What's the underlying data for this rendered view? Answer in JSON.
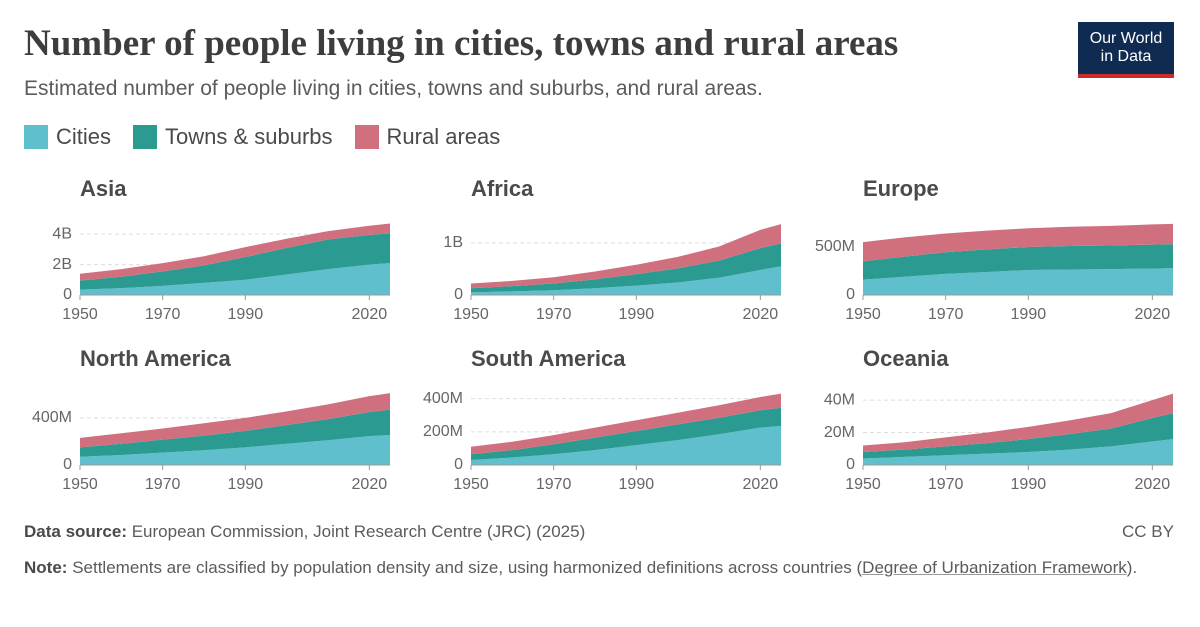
{
  "title": "Number of people living in cities, towns and rural areas",
  "subtitle": "Estimated number of people living in cities, towns and suburbs, and rural areas.",
  "logo": [
    "Our World",
    "in Data"
  ],
  "source_label": "Data source:",
  "source": "European Commission, Joint Research Centre (JRC) (2025)",
  "license": "CC BY",
  "note_label": "Note:",
  "note_text": "Settlements are classified by population density and size, using harmonized definitions across countries (",
  "note_link": "Degree of Urbanization Framework",
  "note_end": ").",
  "chart_data": [
    {
      "type": "stacked_area",
      "title": "Asia",
      "x": [
        1950,
        1960,
        1970,
        1980,
        1990,
        2000,
        2010,
        2020,
        2025
      ],
      "xlim": [
        1950,
        2025
      ],
      "xticks": [
        1950,
        1970,
        1990,
        2020
      ],
      "ylim": [
        0,
        4800000000
      ],
      "yticks": [
        0,
        {
          "value": 2000000000,
          "label": "2B"
        },
        {
          "value": 4000000000,
          "label": "4B"
        }
      ],
      "grid": true,
      "series": [
        {
          "name": "Cities",
          "color": "#5fbfcc",
          "values": [
            350000000,
            450000000,
            600000000,
            800000000,
            1000000000,
            1350000000,
            1700000000,
            2000000000,
            2100000000
          ]
        },
        {
          "name": "Towns & suburbs",
          "color": "#2b9b92",
          "values": [
            600000000,
            750000000,
            950000000,
            1150000000,
            1500000000,
            1750000000,
            1950000000,
            1950000000,
            1950000000
          ]
        },
        {
          "name": "Rural areas",
          "color": "#d0707f",
          "values": [
            450000000,
            500000000,
            550000000,
            600000000,
            650000000,
            600000000,
            550000000,
            600000000,
            650000000
          ]
        }
      ]
    },
    {
      "type": "stacked_area",
      "title": "Africa",
      "x": [
        1950,
        1960,
        1970,
        1980,
        1990,
        2000,
        2010,
        2020,
        2025
      ],
      "xlim": [
        1950,
        2025
      ],
      "xticks": [
        1950,
        1970,
        1990,
        2020
      ],
      "ylim": [
        0,
        1400000000
      ],
      "yticks": [
        0,
        {
          "value": 1000000000,
          "label": "1B"
        }
      ],
      "grid": true,
      "series": [
        {
          "name": "Cities",
          "color": "#5fbfcc",
          "values": [
            50000000,
            70000000,
            90000000,
            130000000,
            180000000,
            240000000,
            330000000,
            480000000,
            550000000
          ]
        },
        {
          "name": "Towns & suburbs",
          "color": "#2b9b92",
          "values": [
            80000000,
            100000000,
            130000000,
            170000000,
            220000000,
            270000000,
            330000000,
            420000000,
            440000000
          ]
        },
        {
          "name": "Rural areas",
          "color": "#d0707f",
          "values": [
            90000000,
            100000000,
            120000000,
            150000000,
            180000000,
            220000000,
            270000000,
            350000000,
            370000000
          ]
        }
      ]
    },
    {
      "type": "stacked_area",
      "title": "Europe",
      "x": [
        1950,
        1960,
        1970,
        1980,
        1990,
        2000,
        2010,
        2020,
        2025
      ],
      "xlim": [
        1950,
        2025
      ],
      "xticks": [
        1950,
        1970,
        1990,
        2020
      ],
      "ylim": [
        0,
        760000000
      ],
      "yticks": [
        0,
        {
          "value": 500000000,
          "label": "500M"
        }
      ],
      "grid": true,
      "series": [
        {
          "name": "Cities",
          "color": "#5fbfcc",
          "values": [
            160000000,
            190000000,
            220000000,
            240000000,
            260000000,
            265000000,
            270000000,
            275000000,
            280000000
          ]
        },
        {
          "name": "Towns & suburbs",
          "color": "#2b9b92",
          "values": [
            190000000,
            210000000,
            225000000,
            235000000,
            240000000,
            245000000,
            245000000,
            250000000,
            250000000
          ]
        },
        {
          "name": "Rural areas",
          "color": "#d0707f",
          "values": [
            200000000,
            200000000,
            195000000,
            195000000,
            195000000,
            200000000,
            205000000,
            210000000,
            210000000
          ]
        }
      ]
    },
    {
      "type": "stacked_area",
      "title": "North America",
      "x": [
        1950,
        1960,
        1970,
        1980,
        1990,
        2000,
        2010,
        2020,
        2025
      ],
      "xlim": [
        1950,
        2025
      ],
      "xticks": [
        1950,
        1970,
        1990,
        2020
      ],
      "ylim": [
        0,
        620000000
      ],
      "yticks": [
        0,
        {
          "value": 400000000,
          "label": "400M"
        }
      ],
      "grid": true,
      "series": [
        {
          "name": "Cities",
          "color": "#5fbfcc",
          "values": [
            70000000,
            85000000,
            105000000,
            125000000,
            150000000,
            180000000,
            210000000,
            245000000,
            255000000
          ]
        },
        {
          "name": "Towns & suburbs",
          "color": "#2b9b92",
          "values": [
            80000000,
            95000000,
            110000000,
            125000000,
            140000000,
            160000000,
            180000000,
            205000000,
            215000000
          ]
        },
        {
          "name": "Rural areas",
          "color": "#d0707f",
          "values": [
            80000000,
            90000000,
            95000000,
            105000000,
            110000000,
            115000000,
            125000000,
            135000000,
            140000000
          ]
        }
      ]
    },
    {
      "type": "stacked_area",
      "title": "South America",
      "x": [
        1950,
        1960,
        1970,
        1980,
        1990,
        2000,
        2010,
        2020,
        2025
      ],
      "xlim": [
        1950,
        2025
      ],
      "xticks": [
        1950,
        1970,
        1990,
        2020
      ],
      "ylim": [
        0,
        440000000
      ],
      "yticks": [
        0,
        {
          "value": 200000000,
          "label": "200M"
        },
        {
          "value": 400000000,
          "label": "400M"
        }
      ],
      "grid": true,
      "series": [
        {
          "name": "Cities",
          "color": "#5fbfcc",
          "values": [
            30000000,
            45000000,
            65000000,
            90000000,
            120000000,
            150000000,
            185000000,
            225000000,
            235000000
          ]
        },
        {
          "name": "Towns & suburbs",
          "color": "#2b9b92",
          "values": [
            35000000,
            45000000,
            60000000,
            75000000,
            85000000,
            95000000,
            100000000,
            105000000,
            110000000
          ]
        },
        {
          "name": "Rural areas",
          "color": "#d0707f",
          "values": [
            45000000,
            50000000,
            55000000,
            60000000,
            65000000,
            70000000,
            75000000,
            80000000,
            85000000
          ]
        }
      ]
    },
    {
      "type": "stacked_area",
      "title": "Oceania",
      "x": [
        1950,
        1960,
        1970,
        1980,
        1990,
        2000,
        2010,
        2020,
        2025
      ],
      "xlim": [
        1950,
        2025
      ],
      "xticks": [
        1950,
        1970,
        1990,
        2020
      ],
      "ylim": [
        0,
        45000000
      ],
      "yticks": [
        0,
        {
          "value": 20000000,
          "label": "20M"
        },
        {
          "value": 40000000,
          "label": "40M"
        }
      ],
      "grid": true,
      "series": [
        {
          "name": "Cities",
          "color": "#5fbfcc",
          "values": [
            4000000,
            5000000,
            6000000,
            7000000,
            8000000,
            9500000,
            11500000,
            14500000,
            16000000
          ]
        },
        {
          "name": "Towns & suburbs",
          "color": "#2b9b92",
          "values": [
            4000000,
            4500000,
            5500000,
            6500000,
            8000000,
            9500000,
            11000000,
            14500000,
            16000000
          ]
        },
        {
          "name": "Rural areas",
          "color": "#d0707f",
          "values": [
            4000000,
            4500000,
            5500000,
            6500000,
            7500000,
            8500000,
            9500000,
            11000000,
            12000000
          ]
        }
      ]
    }
  ]
}
